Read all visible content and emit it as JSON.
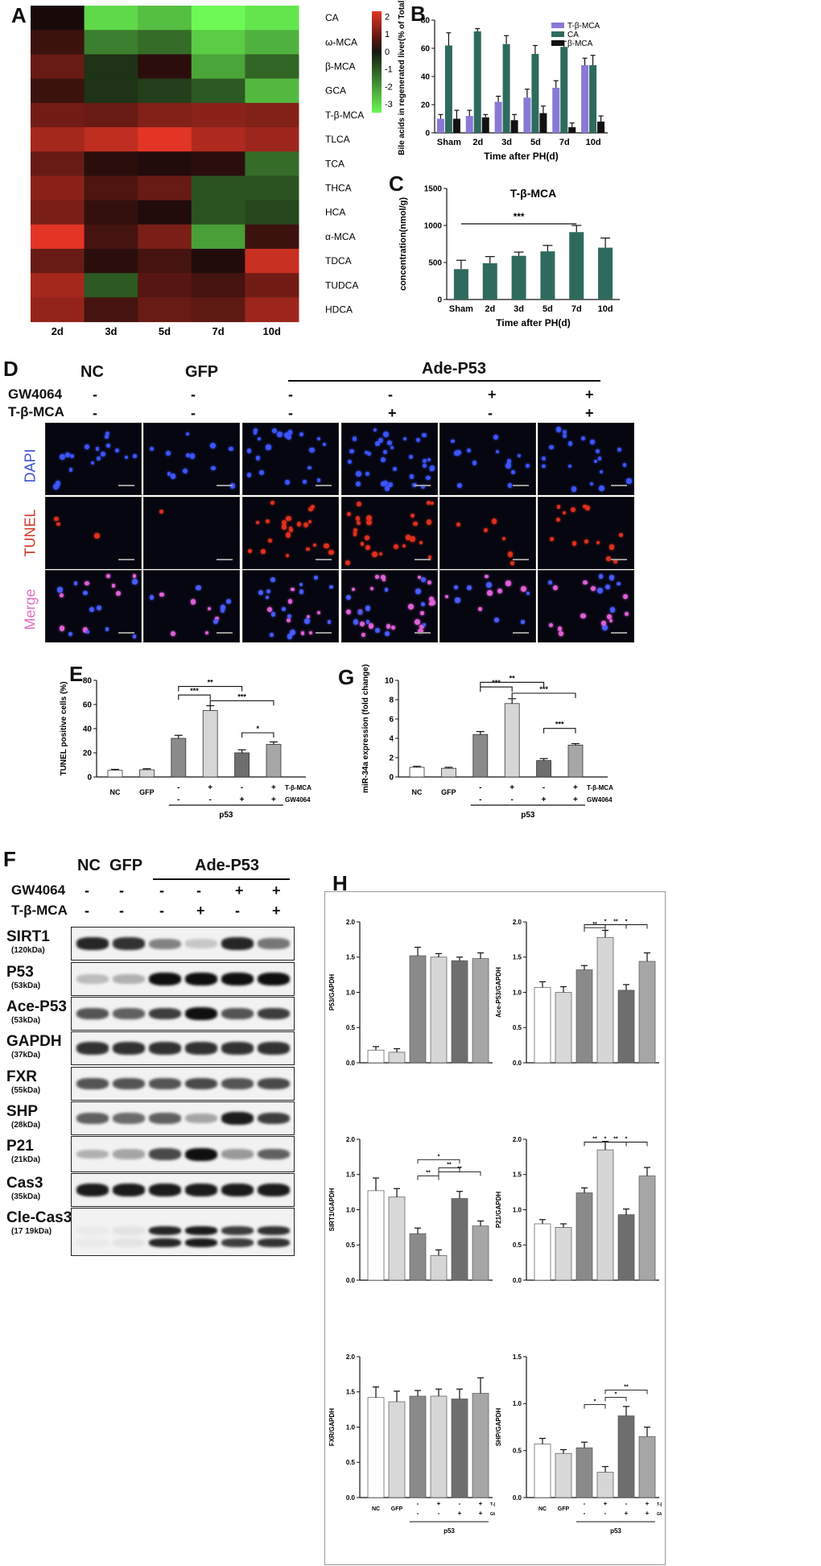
{
  "panel_letters": [
    "A",
    "B",
    "C",
    "D",
    "E",
    "F",
    "G",
    "H"
  ],
  "chart_data": [
    {
      "panel": "A",
      "type": "heatmap",
      "columns": [
        "2d",
        "3d",
        "5d",
        "7d",
        "10d"
      ],
      "rows": [
        "CA",
        "ω-MCA",
        "β-MCA",
        "GCA",
        "T-β-MCA",
        "TLCA",
        "TCA",
        "THCA",
        "HCA",
        "α-MCA",
        "TDCA",
        "TUDCA",
        "HDCA"
      ],
      "values": [
        [
          0.0,
          -3.0,
          -2.6,
          -3.5,
          -3.2
        ],
        [
          0.4,
          -1.6,
          -1.3,
          -2.8,
          -2.4
        ],
        [
          0.9,
          -0.4,
          0.2,
          -2.2,
          -1.2
        ],
        [
          0.4,
          -0.4,
          -0.6,
          -1.0,
          -2.5
        ],
        [
          1.0,
          0.9,
          1.2,
          1.3,
          1.2
        ],
        [
          1.6,
          1.9,
          2.3,
          1.7,
          1.5
        ],
        [
          0.9,
          0.2,
          0.1,
          0.2,
          -1.3
        ],
        [
          1.3,
          0.6,
          0.9,
          -0.9,
          -0.9
        ],
        [
          1.1,
          0.3,
          0.1,
          -0.9,
          -0.7
        ],
        [
          2.3,
          0.5,
          1.1,
          -2.1,
          0.4
        ],
        [
          0.9,
          0.2,
          0.5,
          0.1,
          2.0
        ],
        [
          1.6,
          -1.0,
          0.7,
          0.5,
          1.0
        ],
        [
          1.4,
          0.5,
          0.9,
          0.8,
          1.5
        ]
      ],
      "colorbar_ticks": [
        "2",
        "1",
        "0",
        "-1",
        "-2",
        "-3"
      ],
      "range": [
        -3.5,
        2.3
      ]
    },
    {
      "panel": "B",
      "type": "bar",
      "categories": [
        "Sham",
        "2d",
        "3d",
        "5d",
        "7d",
        "10d"
      ],
      "series": [
        {
          "name": "T-β-MCA",
          "color": "#8a78d6",
          "values": [
            10,
            12,
            22,
            25,
            32,
            48
          ],
          "err": [
            3,
            4,
            4,
            6,
            5,
            5
          ]
        },
        {
          "name": "CA",
          "color": "#2e6b5e",
          "values": [
            62,
            72,
            63,
            56,
            61,
            48
          ],
          "err": [
            9,
            2,
            6,
            6,
            4,
            7
          ]
        },
        {
          "name": "β-MCA",
          "color": "#111111",
          "values": [
            10,
            11,
            9,
            14,
            4,
            8
          ],
          "err": [
            6,
            2,
            4,
            5,
            3,
            4
          ]
        }
      ],
      "ylabel": "Bile acids in regenerated liver(% of Total)",
      "xlabel": "Time after PH(d)",
      "yticks": [
        "0",
        "20",
        "40",
        "60",
        "80"
      ],
      "ylim": [
        0,
        80
      ]
    },
    {
      "panel": "C",
      "type": "bar",
      "title": "T-β-MCA",
      "categories": [
        "Sham",
        "2d",
        "3d",
        "5d",
        "7d",
        "10d"
      ],
      "values": [
        410,
        490,
        590,
        650,
        910,
        700
      ],
      "err": [
        120,
        90,
        50,
        80,
        90,
        130
      ],
      "color": "#2e6b5e",
      "ylabel": "concentration(nmol/g)",
      "xlabel": "Time after PH(d)",
      "yticks": [
        "0",
        "500",
        "1000",
        "1500"
      ],
      "ylim": [
        0,
        1500
      ],
      "sig_label": "***"
    },
    {
      "panel": "E",
      "type": "bar",
      "categories": [
        "NC",
        "GFP",
        "p53",
        "p53+T-β-MCA",
        "p53+GW4064",
        "p53+T-β-MCA+GW4064"
      ],
      "values": [
        5.5,
        6,
        32,
        55,
        20,
        27
      ],
      "err": [
        0.8,
        0.8,
        2.5,
        4,
        2.5,
        2
      ],
      "colors": [
        "#ffffff",
        "#d8d8d8",
        "#8a8a8a",
        "#d6d6d6",
        "#6e6e6e",
        "#a6a6a6"
      ],
      "ylabel": "TUNEL positive cells (%)",
      "yticks": [
        "0",
        "20",
        "40",
        "60",
        "80"
      ],
      "ylim": [
        0,
        80
      ],
      "tick_labels": [
        "NC",
        "GFP"
      ],
      "sign_rows": [
        [
          "-",
          "+",
          "-",
          "+"
        ],
        [
          "-",
          "-",
          "+",
          "+"
        ]
      ],
      "sign_labels": [
        "T-β-MCA",
        "GW4064"
      ],
      "group_label": "p53",
      "sig": [
        "***",
        "**",
        "***",
        "*"
      ]
    },
    {
      "panel": "G",
      "type": "bar",
      "categories": [
        "NC",
        "GFP",
        "p53",
        "p53+T-β-MCA",
        "p53+GW4064",
        "p53+T-β-MCA+GW4064"
      ],
      "values": [
        1.0,
        0.9,
        4.4,
        7.6,
        1.7,
        3.3
      ],
      "err": [
        0.1,
        0.1,
        0.3,
        0.5,
        0.2,
        0.15
      ],
      "colors": [
        "#ffffff",
        "#d8d8d8",
        "#8a8a8a",
        "#d6d6d6",
        "#6e6e6e",
        "#a6a6a6"
      ],
      "ylabel": "miR-34a expression (fold change)",
      "yticks": [
        "0",
        "2",
        "4",
        "6",
        "8",
        "10"
      ],
      "ylim": [
        0,
        10
      ],
      "tick_labels": [
        "NC",
        "GFP"
      ],
      "sign_rows": [
        [
          "-",
          "+",
          "-",
          "+"
        ],
        [
          "-",
          "-",
          "+",
          "+"
        ]
      ],
      "sign_labels": [
        "T-β-MCA",
        "GW4064"
      ],
      "group_label": "p53",
      "sig": [
        "***",
        "**",
        "***",
        "***"
      ]
    },
    {
      "panel": "H1",
      "type": "bar",
      "ylabel": "P53/GAPDH",
      "values": [
        0.18,
        0.15,
        1.52,
        1.5,
        1.45,
        1.48
      ],
      "err": [
        0.05,
        0.05,
        0.12,
        0.05,
        0.05,
        0.08
      ],
      "yticks": [
        "0.0",
        "0.5",
        "1.0",
        "1.5",
        "2.0"
      ],
      "ylim": [
        0,
        2.0
      ],
      "sig": []
    },
    {
      "panel": "H2",
      "type": "bar",
      "ylabel": "Ace-P53/GAPDH",
      "values": [
        1.07,
        1.0,
        1.32,
        1.78,
        1.03,
        1.44
      ],
      "err": [
        0.08,
        0.08,
        0.06,
        0.1,
        0.08,
        0.12
      ],
      "yticks": [
        "0.0",
        "0.5",
        "1.0",
        "1.5",
        "2.0"
      ],
      "ylim": [
        0,
        2.0
      ],
      "sig": [
        "**",
        "**",
        "*",
        "*"
      ]
    },
    {
      "panel": "H3",
      "type": "bar",
      "ylabel": "SIRT1/GAPDH",
      "values": [
        1.27,
        1.18,
        0.66,
        0.35,
        1.16,
        0.77
      ],
      "err": [
        0.18,
        0.12,
        0.08,
        0.08,
        0.1,
        0.07
      ],
      "yticks": [
        "0.0",
        "0.5",
        "1.0",
        "1.5",
        "2.0"
      ],
      "ylim": [
        0,
        2.0
      ],
      "sig": [
        "**",
        "**",
        "*",
        "**"
      ]
    },
    {
      "panel": "H4",
      "type": "bar",
      "ylabel": "P21/GAPDH",
      "values": [
        0.8,
        0.75,
        1.24,
        1.85,
        0.93,
        1.48
      ],
      "err": [
        0.06,
        0.05,
        0.07,
        0.12,
        0.08,
        0.12
      ],
      "yticks": [
        "0.0",
        "0.5",
        "1.0",
        "1.5",
        "2.0"
      ],
      "ylim": [
        0,
        2.0
      ],
      "sig": [
        "**",
        "**",
        "*",
        "*"
      ]
    },
    {
      "panel": "H5",
      "type": "bar",
      "ylabel": "FXR/GAPDH",
      "values": [
        1.42,
        1.36,
        1.44,
        1.44,
        1.4,
        1.48
      ],
      "err": [
        0.15,
        0.15,
        0.08,
        0.1,
        0.14,
        0.22
      ],
      "yticks": [
        "0.0",
        "0.5",
        "1.0",
        "1.5",
        "2.0"
      ],
      "ylim": [
        0,
        2.0
      ],
      "sig": []
    },
    {
      "panel": "H6",
      "type": "bar",
      "ylabel": "SHP/GAPDH",
      "values": [
        0.57,
        0.47,
        0.53,
        0.27,
        0.87,
        0.65
      ],
      "err": [
        0.06,
        0.04,
        0.06,
        0.06,
        0.1,
        0.1
      ],
      "yticks": [
        "0.0",
        "0.5",
        "1.0",
        "1.5"
      ],
      "ylim": [
        0,
        1.5
      ],
      "sig": [
        "*",
        "*",
        "**"
      ]
    }
  ],
  "panel_h_common": {
    "tick_labels": [
      "NC",
      "GFP"
    ],
    "sign_rows": [
      [
        "-",
        "+",
        "-",
        "+"
      ],
      [
        "-",
        "-",
        "+",
        "+"
      ]
    ],
    "sign_labels": [
      "T-β-MCA",
      "GW4064"
    ],
    "group_label": "p53",
    "colors": [
      "#ffffff",
      "#d8d8d8",
      "#8a8a8a",
      "#d6d6d6",
      "#6e6e6e",
      "#a6a6a6"
    ]
  },
  "panel_d": {
    "columns": [
      "NC",
      "GFP",
      "Ade-P53"
    ],
    "treat_labels": [
      "GW4064",
      "T-β-MCA"
    ],
    "gw4064_signs": [
      "-",
      "-",
      "-",
      "-",
      "+",
      "+"
    ],
    "tbmca_signs": [
      "-",
      "-",
      "-",
      "+",
      "-",
      "+"
    ],
    "rows": [
      "DAPI",
      "TUNEL",
      "Merge"
    ],
    "row_colors": [
      "#3a4fd6",
      "#d23a2a",
      "#e070c0"
    ],
    "cell_counts": [
      [
        18,
        12,
        22,
        34,
        14,
        20
      ],
      [
        3,
        1,
        22,
        26,
        6,
        14
      ],
      [
        18,
        12,
        24,
        34,
        14,
        20
      ]
    ]
  },
  "panel_f": {
    "columns": [
      "NC",
      "GFP",
      "Ade-P53"
    ],
    "treat_labels": [
      "GW4064",
      "T-β-MCA"
    ],
    "gw4064_signs": [
      "-",
      "-",
      "-",
      "-",
      "+",
      "+"
    ],
    "tbmca_signs": [
      "-",
      "-",
      "-",
      "+",
      "-",
      "+"
    ],
    "blots": [
      {
        "name": "SIRT1",
        "kda": "(120kDa)",
        "intensity": [
          0.9,
          0.85,
          0.5,
          0.2,
          0.9,
          0.55
        ]
      },
      {
        "name": "P53",
        "kda": "(53kDa)",
        "intensity": [
          0.25,
          0.3,
          1,
          1,
          1,
          1
        ]
      },
      {
        "name": "Ace-P53",
        "kda": "(53kDa)",
        "intensity": [
          0.7,
          0.65,
          0.8,
          1,
          0.7,
          0.8
        ]
      },
      {
        "name": "GAPDH",
        "kda": "(37kDa)",
        "intensity": [
          0.85,
          0.85,
          0.85,
          0.85,
          0.85,
          0.85
        ]
      },
      {
        "name": "FXR",
        "kda": "(55kDa)",
        "intensity": [
          0.7,
          0.7,
          0.7,
          0.75,
          0.7,
          0.75
        ]
      },
      {
        "name": "SHP",
        "kda": "(28kDa)",
        "intensity": [
          0.65,
          0.6,
          0.65,
          0.35,
          0.95,
          0.8
        ]
      },
      {
        "name": "P21",
        "kda": "(21kDa)",
        "intensity": [
          0.3,
          0.35,
          0.75,
          1,
          0.4,
          0.65
        ]
      },
      {
        "name": "Cas3",
        "kda": "(35kDa)",
        "intensity": [
          0.95,
          0.95,
          0.95,
          0.95,
          0.95,
          0.95
        ]
      },
      {
        "name": "Cle-Cas3",
        "kda": "(17 19kDa)",
        "intensity": [
          0.05,
          0.08,
          0.9,
          0.95,
          0.8,
          0.85
        ]
      }
    ]
  }
}
